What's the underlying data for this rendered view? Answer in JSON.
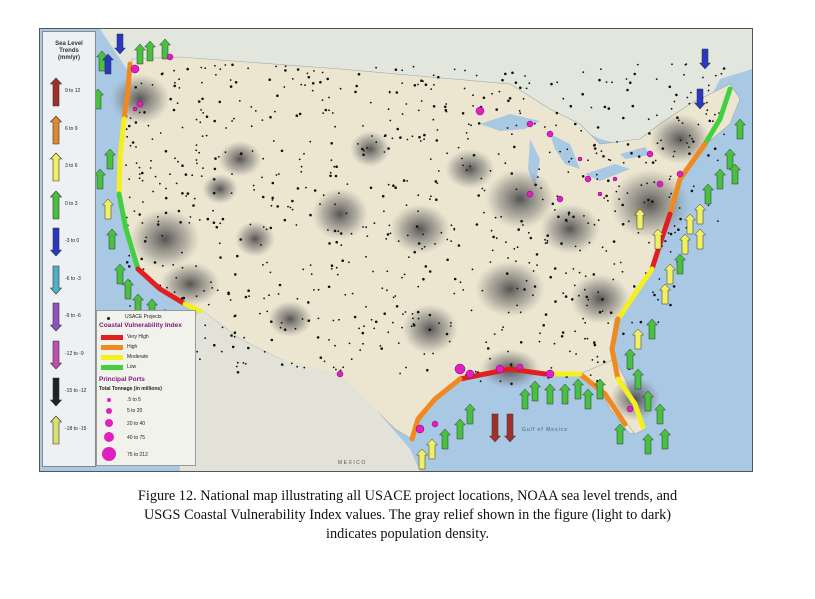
{
  "legend": {
    "title": "Sea Level\nTrends\n(mm/yr)",
    "items": [
      {
        "label": "9 to 12",
        "color": "#a0302a"
      },
      {
        "label": "6 to 9",
        "color": "#e08a30"
      },
      {
        "label": "3 to 6",
        "color": "#f0f060"
      },
      {
        "label": "0 to 3",
        "color": "#48c040"
      },
      {
        "label": "-3 to 0",
        "color": "#2838c0"
      },
      {
        "label": "-6 to -3",
        "color": "#50b0c8"
      },
      {
        "label": "-9 to -6",
        "color": "#9050c0"
      },
      {
        "label": "-12 to -9",
        "color": "#c050b0"
      },
      {
        "label": "-15 to -12",
        "color": "#222222"
      },
      {
        "label": "-18 to -15",
        "color": "#d8e070"
      }
    ]
  },
  "key": {
    "projects_label": "USACE Projects",
    "cvi_header": "Coastal Vulnerability Index",
    "cvi": [
      {
        "label": "Very High",
        "color": "#e02020"
      },
      {
        "label": "High",
        "color": "#f08a20"
      },
      {
        "label": "Moderate",
        "color": "#f4f020"
      },
      {
        "label": "Low",
        "color": "#40d040"
      }
    ],
    "ports_header": "Principal Ports",
    "ports_sub": "Total Tonnage (in millions)",
    "ports": [
      {
        "label": ".5 to 5"
      },
      {
        "label": "5 to 20"
      },
      {
        "label": "20 to 40"
      },
      {
        "label": "40 to 75"
      },
      {
        "label": "75 to 212"
      }
    ]
  },
  "map": {
    "gulf_label": "Gulf of Mexico",
    "mexico_label": "MEXICO",
    "ocean_color": "#a9c8e4",
    "land_color": "#ece6d0"
  },
  "caption": {
    "line1": "Figure 12.  National map illustrating all USACE project locations, NOAA sea level trends, and",
    "line2": "USGS Coastal Vulnerability Index values.  The gray relief shown in the figure (light to dark)",
    "line3": "indicates population density."
  }
}
